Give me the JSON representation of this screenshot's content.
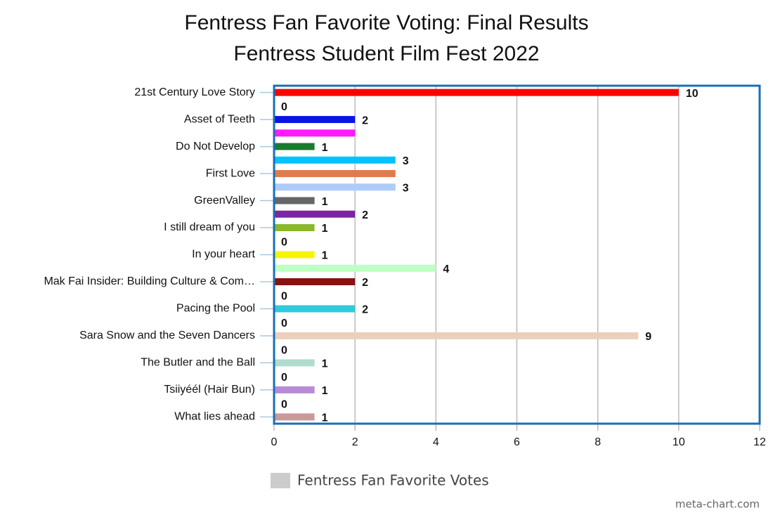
{
  "chart_data": {
    "type": "bar",
    "orientation": "horizontal",
    "title": "Fentress Fan Favorite Voting: Final Results",
    "subtitle": "Fentress Student Film Fest 2022",
    "categories": [
      "21st Century Love Story",
      null,
      "Asset of Teeth",
      null,
      "Do Not Develop",
      null,
      "First Love",
      null,
      "GreenValley",
      null,
      "I still dream of you",
      null,
      "In your heart",
      null,
      "Mak Fai Insider: Building Culture & Com…",
      null,
      "Pacing the Pool",
      null,
      "Sara Snow and the Seven Dancers",
      null,
      "The Butler and the Ball",
      null,
      "Tsiiyéél (Hair Bun)",
      null,
      "What lies ahead"
    ],
    "series": [
      {
        "name": "Fentress Fan Favorite Votes",
        "color": "#cccccc",
        "values": [
          10,
          0,
          2,
          2,
          1,
          3,
          3,
          3,
          1,
          2,
          1,
          0,
          1,
          4,
          2,
          0,
          2,
          0,
          9,
          0,
          1,
          0,
          1,
          0,
          1
        ],
        "value_labels": [
          10,
          0,
          2,
          null,
          1,
          3,
          null,
          3,
          1,
          2,
          1,
          0,
          1,
          4,
          2,
          0,
          2,
          0,
          9,
          0,
          1,
          0,
          1,
          0,
          1
        ],
        "colors": [
          "#ff0000",
          "#ff0000",
          "#0a14e6",
          "#ff1aff",
          "#1a7a2e",
          "#00c3ff",
          "#e07b4f",
          "#aecbfa",
          "#666666",
          "#7a26a6",
          "#8ab82a",
          "#8ab82a",
          "#f5f500",
          "#bfffc4",
          "#8b1010",
          "#8b1010",
          "#2ecbdf",
          "#2ecbdf",
          "#ecd0bc",
          "#ecd0bc",
          "#b0dccc",
          "#b0dccc",
          "#b88bd6",
          "#b88bd6",
          "#c99a9a"
        ]
      }
    ],
    "xlim": [
      0,
      12
    ],
    "xticks": [
      0,
      2,
      4,
      6,
      8,
      10,
      12
    ],
    "grid": true,
    "legend": "bottom",
    "credit": "meta-chart.com"
  }
}
